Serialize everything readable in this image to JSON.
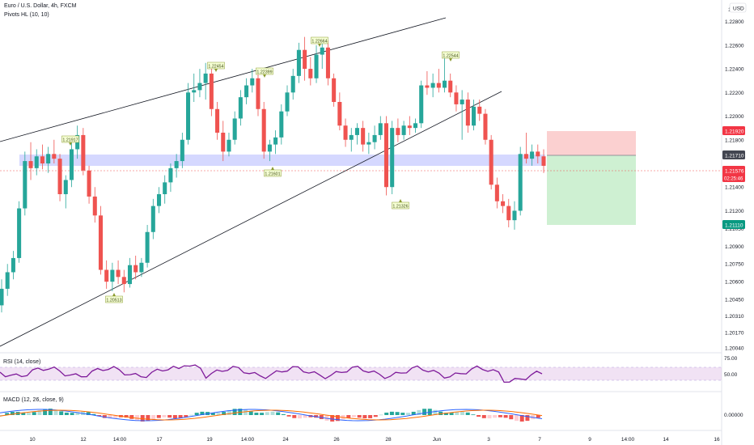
{
  "header": {
    "symbol": "Euro / U.S. Dollar, 4h, FXCM",
    "indicator": "Pivots HL (10, 10)",
    "currency": "USD"
  },
  "chart_data": {
    "type": "candlestick",
    "price_ticks": [
      "1.22800",
      "1.22600",
      "1.22400",
      "1.22200",
      "1.22000",
      "1.21800",
      "1.21400",
      "1.21200",
      "1.21050",
      "1.20900",
      "1.20750",
      "1.20600",
      "1.20450",
      "1.20310",
      "1.20170",
      "1.20040"
    ],
    "top_tick_label": "1.2",
    "x_ticks": [
      "10",
      "12",
      "14:00",
      "17",
      "19",
      "14:00",
      "24",
      "26",
      "28",
      "Jun",
      "3",
      "7",
      "9",
      "14:00",
      "14",
      "16"
    ],
    "pivot_labels": [
      "1.21917",
      "1.22454",
      "1.22399",
      "1.22664",
      "1.22544",
      "1.21601",
      "1.21326",
      "1.20513"
    ],
    "price_tags": {
      "stop": "1.21920",
      "entry": "1.21710",
      "current": "1.21576",
      "countdown": "02:25:46",
      "target": "1.21110"
    },
    "colors": {
      "up": "#26a69a",
      "down": "#ef5350",
      "rsi": "#7e1a9a",
      "macd": "#2962ff",
      "signal": "#ff6d00",
      "zone": "#b3b8ff"
    },
    "candles": [
      [
        1.204,
        1.2062,
        1.2034,
        1.2054
      ],
      [
        1.2054,
        1.2075,
        1.2048,
        1.2068
      ],
      [
        1.2068,
        1.2086,
        1.2062,
        1.208
      ],
      [
        1.208,
        1.2128,
        1.2076,
        1.2122
      ],
      [
        1.2122,
        1.217,
        1.2116,
        1.2162
      ],
      [
        1.2162,
        1.2178,
        1.2146,
        1.2156
      ],
      [
        1.2156,
        1.2172,
        1.215,
        1.2166
      ],
      [
        1.2166,
        1.2176,
        1.2155,
        1.216
      ],
      [
        1.216,
        1.2174,
        1.2152,
        1.2168
      ],
      [
        1.2168,
        1.218,
        1.216,
        1.2164
      ],
      [
        1.2164,
        1.2168,
        1.2128,
        1.2134
      ],
      [
        1.2134,
        1.215,
        1.2122,
        1.2146
      ],
      [
        1.2146,
        1.218,
        1.214,
        1.2172
      ],
      [
        1.2172,
        1.2192,
        1.2164,
        1.2184
      ],
      [
        1.2184,
        1.219,
        1.215,
        1.2154
      ],
      [
        1.2154,
        1.2158,
        1.2126,
        1.2132
      ],
      [
        1.2132,
        1.214,
        1.211,
        1.2116
      ],
      [
        1.2116,
        1.2124,
        1.2066,
        1.207
      ],
      [
        1.207,
        1.2078,
        1.2054,
        1.206
      ],
      [
        1.206,
        1.2076,
        1.2052,
        1.207
      ],
      [
        1.207,
        1.2078,
        1.2058,
        1.2064
      ],
      [
        1.2064,
        1.207,
        1.2051,
        1.2058
      ],
      [
        1.2058,
        1.208,
        1.2055,
        1.2074
      ],
      [
        1.2074,
        1.2082,
        1.2062,
        1.2068
      ],
      [
        1.2068,
        1.208,
        1.2064,
        1.2076
      ],
      [
        1.2076,
        1.2108,
        1.2072,
        1.2102
      ],
      [
        1.2102,
        1.213,
        1.2096,
        1.2124
      ],
      [
        1.2124,
        1.214,
        1.2118,
        1.2134
      ],
      [
        1.2134,
        1.215,
        1.2126,
        1.2144
      ],
      [
        1.2144,
        1.216,
        1.2136,
        1.2156
      ],
      [
        1.2156,
        1.2168,
        1.2148,
        1.2162
      ],
      [
        1.2162,
        1.2186,
        1.2156,
        1.218
      ],
      [
        1.218,
        1.2228,
        1.2176,
        1.222
      ],
      [
        1.222,
        1.2236,
        1.2212,
        1.2222
      ],
      [
        1.2222,
        1.224,
        1.2216,
        1.2228
      ],
      [
        1.2228,
        1.2245,
        1.2214,
        1.2236
      ],
      [
        1.2236,
        1.2242,
        1.22,
        1.2206
      ],
      [
        1.2206,
        1.2212,
        1.218,
        1.2186
      ],
      [
        1.2186,
        1.2196,
        1.2162,
        1.217
      ],
      [
        1.217,
        1.2186,
        1.2166,
        1.218
      ],
      [
        1.218,
        1.2204,
        1.2176,
        1.2198
      ],
      [
        1.2198,
        1.2222,
        1.2192,
        1.2216
      ],
      [
        1.2216,
        1.2232,
        1.221,
        1.2226
      ],
      [
        1.2226,
        1.224,
        1.222,
        1.2232
      ],
      [
        1.2232,
        1.2238,
        1.22,
        1.2206
      ],
      [
        1.2206,
        1.2212,
        1.2164,
        1.217
      ],
      [
        1.217,
        1.218,
        1.2162,
        1.2176
      ],
      [
        1.2176,
        1.2188,
        1.2168,
        1.2182
      ],
      [
        1.2182,
        1.221,
        1.2176,
        1.2204
      ],
      [
        1.2204,
        1.2226,
        1.22,
        1.222
      ],
      [
        1.222,
        1.224,
        1.2214,
        1.2234
      ],
      [
        1.2234,
        1.2262,
        1.2228,
        1.2256
      ],
      [
        1.2256,
        1.2267,
        1.223,
        1.224
      ],
      [
        1.224,
        1.225,
        1.2226,
        1.2232
      ],
      [
        1.2232,
        1.226,
        1.2228,
        1.2252
      ],
      [
        1.2252,
        1.2266,
        1.224,
        1.2258
      ],
      [
        1.2258,
        1.2264,
        1.2226,
        1.2232
      ],
      [
        1.2232,
        1.2236,
        1.2208,
        1.2212
      ],
      [
        1.2212,
        1.222,
        1.2188,
        1.2192
      ],
      [
        1.2192,
        1.2198,
        1.2174,
        1.218
      ],
      [
        1.218,
        1.219,
        1.217,
        1.2184
      ],
      [
        1.2184,
        1.2194,
        1.2176,
        1.219
      ],
      [
        1.219,
        1.2196,
        1.217,
        1.2176
      ],
      [
        1.2176,
        1.2186,
        1.2168,
        1.2178
      ],
      [
        1.2178,
        1.2192,
        1.2172,
        1.2184
      ],
      [
        1.2184,
        1.22,
        1.218,
        1.2194
      ],
      [
        1.2194,
        1.22,
        1.2133,
        1.214
      ],
      [
        1.214,
        1.2196,
        1.2134,
        1.219
      ],
      [
        1.219,
        1.2198,
        1.2178,
        1.2184
      ],
      [
        1.2184,
        1.2196,
        1.218,
        1.2192
      ],
      [
        1.2192,
        1.22,
        1.2184,
        1.219
      ],
      [
        1.219,
        1.2198,
        1.2186,
        1.2194
      ],
      [
        1.2194,
        1.223,
        1.219,
        1.2226
      ],
      [
        1.2226,
        1.2238,
        1.2218,
        1.2224
      ],
      [
        1.2224,
        1.2236,
        1.2216,
        1.2228
      ],
      [
        1.2228,
        1.224,
        1.222,
        1.2224
      ],
      [
        1.2224,
        1.2252,
        1.222,
        1.223
      ],
      [
        1.223,
        1.2236,
        1.2216,
        1.222
      ],
      [
        1.222,
        1.2226,
        1.2204,
        1.221
      ],
      [
        1.221,
        1.2222,
        1.218,
        1.2214
      ],
      [
        1.2214,
        1.222,
        1.2186,
        1.2192
      ],
      [
        1.2192,
        1.2214,
        1.2188,
        1.2208
      ],
      [
        1.2208,
        1.2214,
        1.2196,
        1.2202
      ],
      [
        1.2202,
        1.2206,
        1.2176,
        1.218
      ],
      [
        1.218,
        1.2184,
        1.2138,
        1.2142
      ],
      [
        1.2142,
        1.2148,
        1.2122,
        1.2128
      ],
      [
        1.2128,
        1.2134,
        1.2118,
        1.2124
      ],
      [
        1.2124,
        1.213,
        1.2106,
        1.2112
      ],
      [
        1.2112,
        1.2128,
        1.2104,
        1.212
      ],
      [
        1.212,
        1.2174,
        1.2116,
        1.2168
      ],
      [
        1.2168,
        1.2186,
        1.216,
        1.2164
      ],
      [
        1.2164,
        1.2176,
        1.2158,
        1.217
      ],
      [
        1.217,
        1.2176,
        1.216,
        1.2166
      ],
      [
        1.2166,
        1.2172,
        1.2152,
        1.2158
      ]
    ]
  }
}
